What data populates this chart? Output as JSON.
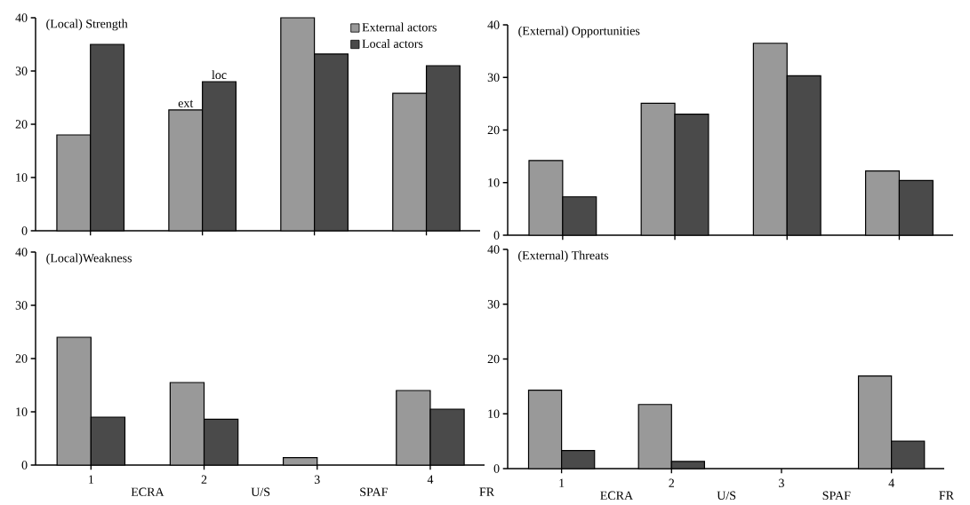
{
  "chart_data": [
    {
      "type": "bar",
      "title": "(Local) Strength",
      "categories": [
        "1",
        "2",
        "3",
        "4"
      ],
      "tick_labels": "y",
      "legend": "top right",
      "series": [
        {
          "name": "External actors",
          "color": "#999999",
          "values": [
            18,
            22.7,
            40,
            25.8
          ]
        },
        {
          "name": "Local actors",
          "color": "#4a4a4a",
          "values": [
            35,
            28,
            33.2,
            31
          ]
        }
      ],
      "ylim": [
        0,
        40
      ],
      "yticks": [
        0,
        10,
        20,
        30,
        40
      ],
      "annotations": [
        {
          "text": "ext",
          "x": "2",
          "y": 22.7
        },
        {
          "text": "loc",
          "x": "2",
          "y": 28
        }
      ]
    },
    {
      "type": "bar",
      "title": "(External) Opportunities",
      "categories": [
        "1",
        "2",
        "3",
        "4"
      ],
      "tick_labels": "y",
      "series": [
        {
          "color": "#999999",
          "values": [
            14.2,
            25.1,
            36.5,
            12.2
          ]
        },
        {
          "color": "#4a4a4a",
          "values": [
            7.3,
            23,
            30.3,
            10.4
          ]
        }
      ],
      "ylim": [
        0,
        40
      ],
      "yticks": [
        0,
        10,
        20,
        30,
        40
      ]
    },
    {
      "type": "bar",
      "title": "(Local)Weakness",
      "categories": [
        "1",
        "2",
        "3",
        "4"
      ],
      "series": [
        {
          "color": "#999999",
          "values": [
            24,
            15.5,
            1.4,
            14
          ]
        },
        {
          "color": "#4a4a4a",
          "values": [
            9,
            8.6,
            null,
            10.5
          ]
        }
      ],
      "ylim": [
        0,
        40
      ],
      "yticks": [
        0,
        10,
        20,
        30,
        40
      ],
      "annotations": [
        "ECRA",
        "U/S",
        "SPAF",
        "FR"
      ]
    },
    {
      "type": "bar",
      "title": "(External) Threats",
      "categories": [
        "1",
        "2",
        "3",
        "4"
      ],
      "series": [
        {
          "color": "#999999",
          "values": [
            14.3,
            11.7,
            null,
            16.9
          ]
        },
        {
          "color": "#4a4a4a",
          "values": [
            3.3,
            1.3,
            null,
            5
          ]
        }
      ],
      "ylim": [
        0,
        40
      ],
      "yticks": [
        0,
        10,
        20,
        30,
        40
      ],
      "annotations": [
        "ECRA",
        "U/S",
        "SPAF",
        "FR"
      ]
    }
  ]
}
